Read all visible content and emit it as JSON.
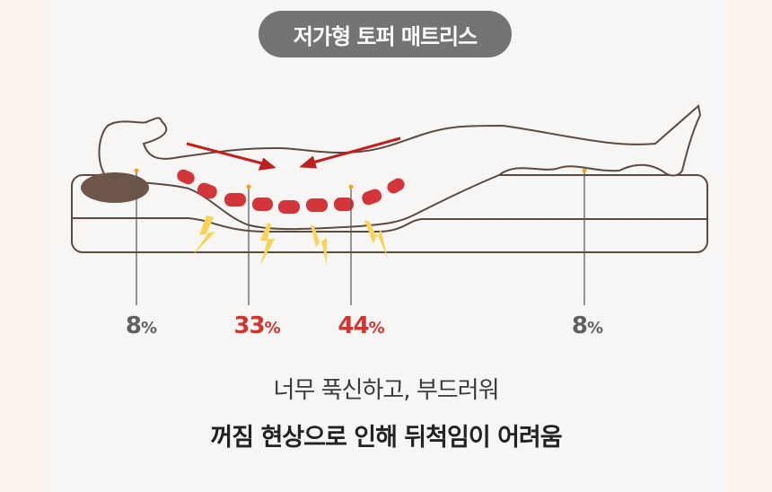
{
  "title": "저가형 토퍼 매트리스",
  "pressure_points": [
    {
      "label": "8",
      "unit": "%",
      "color": "#5f5f5f"
    },
    {
      "label": "33",
      "unit": "%",
      "color": "#d2352f"
    },
    {
      "label": "44",
      "unit": "%",
      "color": "#d2352f"
    },
    {
      "label": "8",
      "unit": "%",
      "color": "#5f5f5f"
    }
  ],
  "caption": {
    "line1": "너무 푹신하고, 부드러워",
    "line2": "꺼짐 현상으로 인해 뒤척임이 어려움"
  },
  "colors": {
    "accent_red": "#d2352f",
    "outline": "#5b4a42",
    "bolt": "#f7d456",
    "pill": "#757474"
  }
}
